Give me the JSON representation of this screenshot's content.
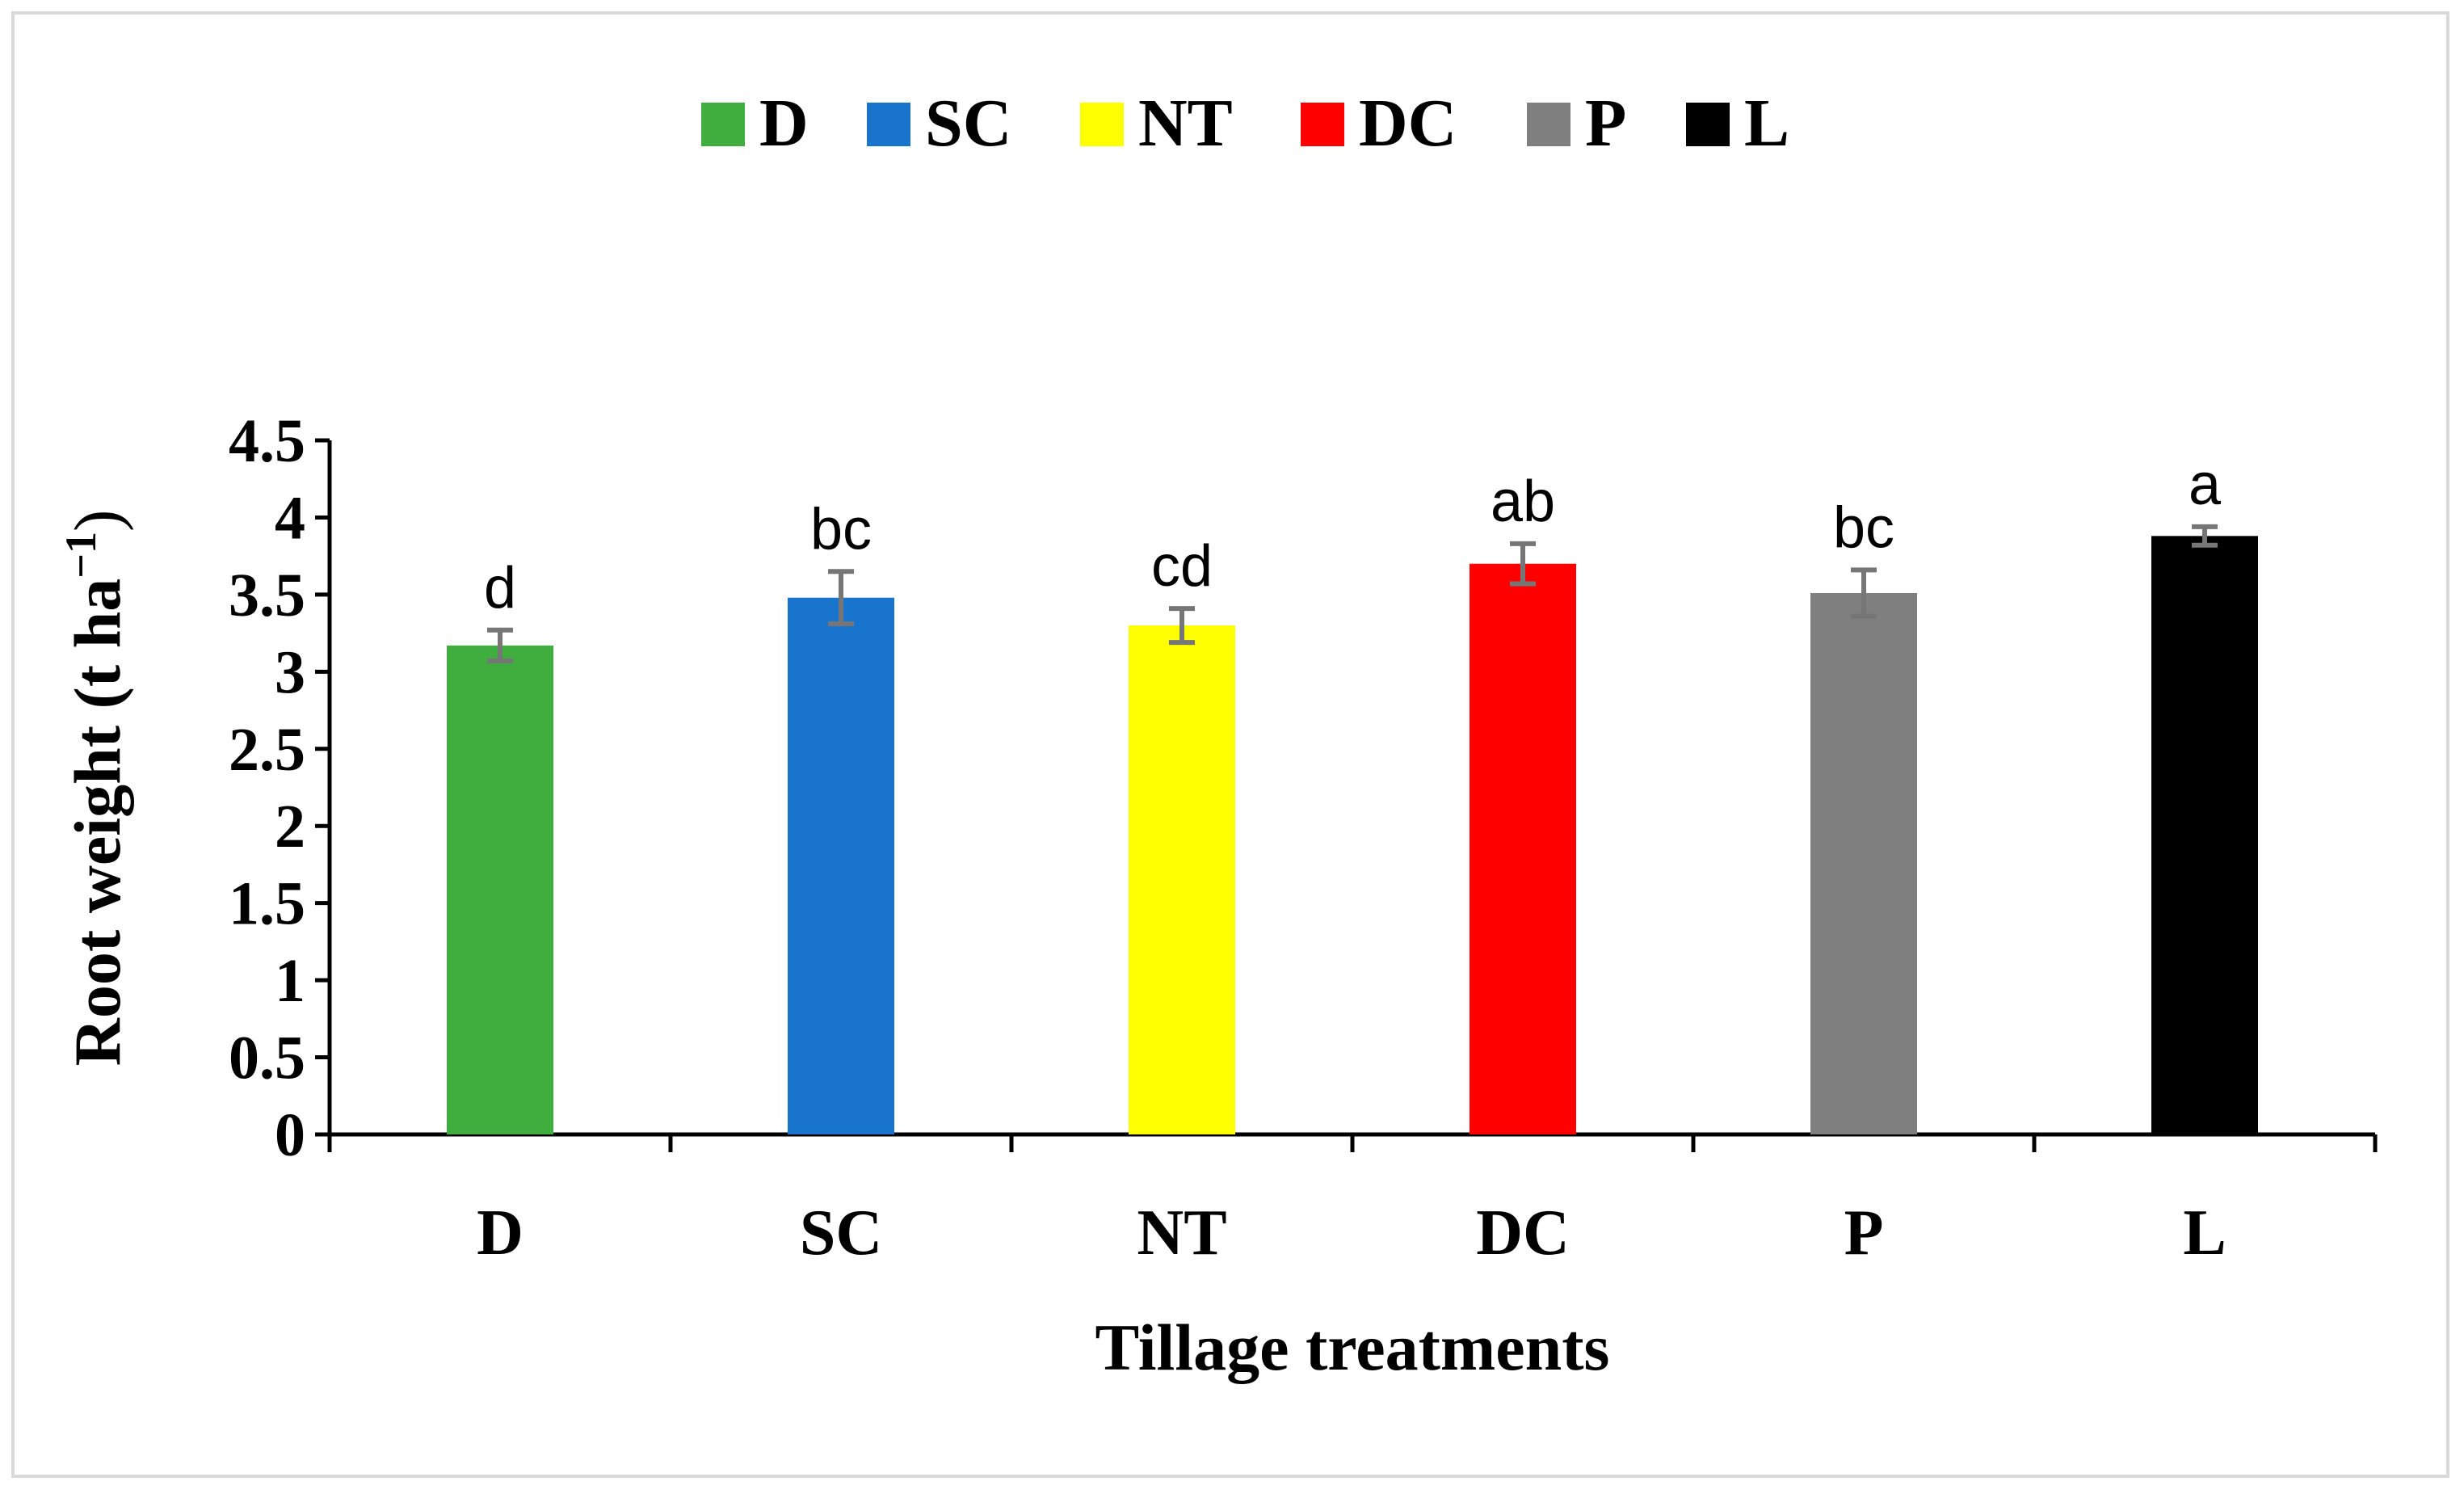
{
  "chart_data": {
    "type": "bar",
    "title": "",
    "xlabel": "Tillage treatments",
    "ylabel_main": "Root weight (t ha",
    "ylabel_sup": "−1",
    "ylabel_close": ")",
    "categories": [
      "D",
      "SC",
      "NT",
      "DC",
      "P",
      "L"
    ],
    "values": [
      3.17,
      3.48,
      3.3,
      3.7,
      3.51,
      3.88
    ],
    "errors": [
      0.1,
      0.17,
      0.11,
      0.13,
      0.15,
      0.06
    ],
    "significance": [
      "d",
      "bc",
      "cd",
      "ab",
      "bc",
      "a"
    ],
    "colors": [
      "#3FAE3F",
      "#1874CD",
      "#FFFF00",
      "#FF0000",
      "#7F7F7F",
      "#000000"
    ],
    "error_bar_color": "#767676",
    "ylim": [
      0,
      4.5
    ],
    "yticks": [
      "0",
      "0.5",
      "1",
      "1.5",
      "2",
      "2.5",
      "3",
      "3.5",
      "4",
      "4.5"
    ],
    "legend": {
      "position": "top-center",
      "entries": [
        "D",
        "SC",
        "NT",
        "DC",
        "P",
        "L"
      ]
    }
  }
}
